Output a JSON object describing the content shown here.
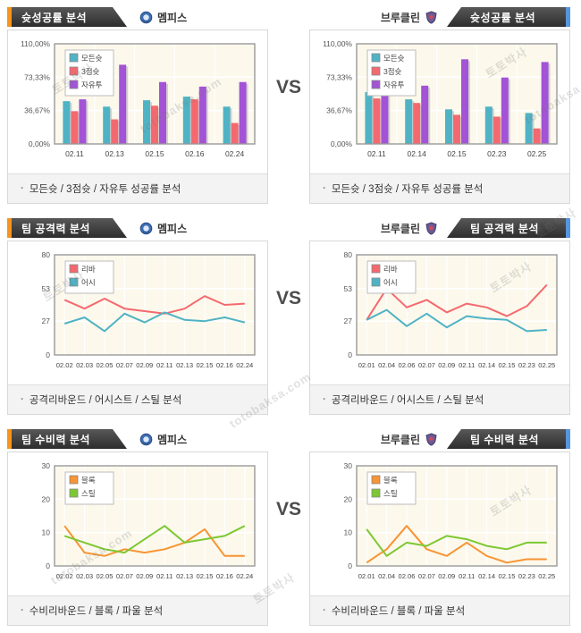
{
  "page": {
    "vs": "VS",
    "watermark_ko": "토토박사",
    "watermark_en": "totobaksa.com",
    "bullet": "·"
  },
  "teams": {
    "left": {
      "name": "멤피스"
    },
    "right": {
      "name": "브루클린"
    }
  },
  "sections": [
    {
      "title": "슛성공률 분석",
      "caption": "모든슛 / 3점슛 / 자유투 성공률 분석"
    },
    {
      "title": "팀 공격력 분석",
      "caption": "공격리바운드 / 어시스트 / 스틸 분석"
    },
    {
      "title": "팀 수비력 분석",
      "caption": "수비리바운드 / 블록 / 파울 분석"
    }
  ],
  "colors": {
    "accent_left": "#f7941d",
    "accent_right": "#5596e0",
    "teal": "#4fb3c5",
    "pink": "#f4696f",
    "purple": "#a253d6",
    "orange": "#f79433",
    "green": "#7dc832",
    "plot_bg": "#fcf8eb",
    "plot_border": "#999999"
  },
  "chart_data": [
    {
      "type": "bar",
      "team": "멤피스",
      "title": "슛성공률 분석",
      "categories": [
        "02.11",
        "02.13",
        "02.15",
        "02.16",
        "02.24"
      ],
      "series": [
        {
          "name": "모든슛",
          "color": "#4fb3c5",
          "values": [
            47,
            41,
            48,
            52,
            41
          ]
        },
        {
          "name": "3점슛",
          "color": "#f4696f",
          "values": [
            36,
            27,
            42,
            49,
            23
          ]
        },
        {
          "name": "자유투",
          "color": "#a253d6",
          "values": [
            49,
            87,
            68,
            63,
            68
          ]
        }
      ],
      "ylim": [
        0,
        110
      ],
      "ytick_values": [
        0,
        36.67,
        73.33,
        110
      ],
      "ytick_labels": [
        "0,00%",
        "36,67%",
        "73,33%",
        "110,00%"
      ],
      "legend_position": "top-left",
      "grid": true
    },
    {
      "type": "bar",
      "team": "브루클린",
      "title": "슛성공률 분석",
      "categories": [
        "02.11",
        "02.14",
        "02.15",
        "02.23",
        "02.25"
      ],
      "series": [
        {
          "name": "모든슛",
          "color": "#4fb3c5",
          "values": [
            57,
            49,
            38,
            41,
            34
          ]
        },
        {
          "name": "3점슛",
          "color": "#f4696f",
          "values": [
            50,
            45,
            32,
            30,
            17
          ]
        },
        {
          "name": "자유투",
          "color": "#a253d6",
          "values": [
            58,
            64,
            93,
            73,
            90
          ]
        }
      ],
      "ylim": [
        0,
        110
      ],
      "ytick_values": [
        0,
        36.67,
        73.33,
        110
      ],
      "ytick_labels": [
        "0,00%",
        "36,67%",
        "73,33%",
        "110,00%"
      ],
      "legend_position": "top-left",
      "grid": true
    },
    {
      "type": "line",
      "team": "멤피스",
      "title": "팀 공격력 분석",
      "categories": [
        "02.02",
        "02.03",
        "02.05",
        "02.07",
        "02.09",
        "02.11",
        "02.13",
        "02.15",
        "02.16",
        "02.24"
      ],
      "series": [
        {
          "name": "리바",
          "color": "#f4696f",
          "values": [
            44,
            37,
            45,
            37,
            35,
            33,
            37,
            47,
            40,
            41
          ]
        },
        {
          "name": "어시",
          "color": "#4fb3c5",
          "values": [
            25,
            30,
            19,
            33,
            26,
            34,
            28,
            27,
            30,
            26
          ]
        }
      ],
      "ylim": [
        0,
        80
      ],
      "ytick_values": [
        0,
        27,
        53,
        80
      ],
      "ytick_labels": [
        "0",
        "27",
        "53",
        "80"
      ],
      "legend_position": "top-left",
      "grid": true
    },
    {
      "type": "line",
      "team": "브루클린",
      "title": "팀 공격력 분석",
      "categories": [
        "02.01",
        "02.04",
        "02.06",
        "02.07",
        "02.09",
        "02.11",
        "02.14",
        "02.15",
        "02.23",
        "02.25"
      ],
      "series": [
        {
          "name": "리바",
          "color": "#f4696f",
          "values": [
            28,
            53,
            38,
            44,
            34,
            41,
            38,
            31,
            39,
            56
          ]
        },
        {
          "name": "어시",
          "color": "#4fb3c5",
          "values": [
            28,
            36,
            23,
            33,
            22,
            31,
            29,
            28,
            19,
            20
          ]
        }
      ],
      "ylim": [
        0,
        80
      ],
      "ytick_values": [
        0,
        27,
        53,
        80
      ],
      "ytick_labels": [
        "0",
        "27",
        "53",
        "80"
      ],
      "legend_position": "top-left",
      "grid": true
    },
    {
      "type": "line",
      "team": "멤피스",
      "title": "팀 수비력 분석",
      "categories": [
        "02.02",
        "02.03",
        "02.05",
        "02.07",
        "02.09",
        "02.11",
        "02.13",
        "02.15",
        "02.16",
        "02.24"
      ],
      "series": [
        {
          "name": "블록",
          "color": "#f79433",
          "values": [
            12,
            4,
            3,
            5,
            4,
            5,
            7,
            11,
            3,
            3
          ]
        },
        {
          "name": "스틸",
          "color": "#7dc832",
          "values": [
            9,
            7,
            5,
            4,
            8,
            12,
            7,
            8,
            9,
            12
          ]
        }
      ],
      "ylim": [
        0,
        30
      ],
      "ytick_values": [
        0,
        10,
        20,
        30
      ],
      "ytick_labels": [
        "0",
        "10",
        "20",
        "30"
      ],
      "legend_position": "top-left",
      "grid": true
    },
    {
      "type": "line",
      "team": "브루클린",
      "title": "팀 수비력 분석",
      "categories": [
        "02.01",
        "02.04",
        "02.06",
        "02.07",
        "02.09",
        "02.11",
        "02.14",
        "02.15",
        "02.23",
        "02.25"
      ],
      "series": [
        {
          "name": "블록",
          "color": "#f79433",
          "values": [
            1,
            5,
            12,
            5,
            3,
            7,
            3,
            1,
            2,
            2
          ]
        },
        {
          "name": "스틸",
          "color": "#7dc832",
          "values": [
            11,
            3,
            7,
            6,
            9,
            8,
            6,
            5,
            7,
            7
          ]
        }
      ],
      "ylim": [
        0,
        30
      ],
      "ytick_values": [
        0,
        10,
        20,
        30
      ],
      "ytick_labels": [
        "0",
        "10",
        "20",
        "30"
      ],
      "legend_position": "top-left",
      "grid": true
    }
  ]
}
